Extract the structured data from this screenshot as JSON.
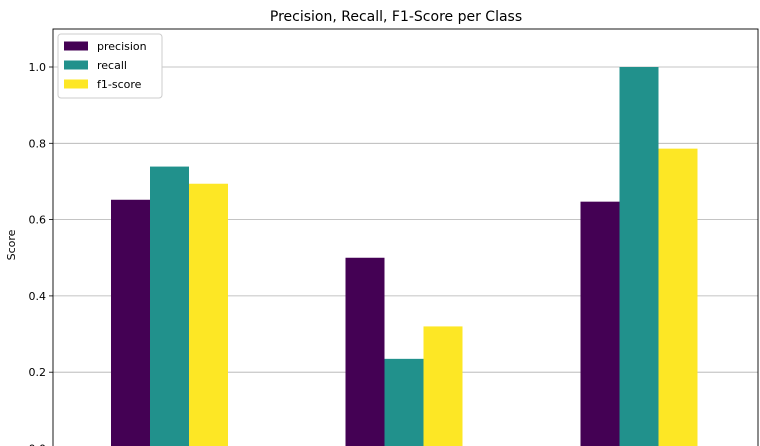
{
  "chart_data": {
    "type": "bar",
    "title": "Precision, Recall, F1-Score per Class",
    "xlabel": "",
    "ylabel": "Score",
    "categories": [
      "",
      "",
      ""
    ],
    "series": [
      {
        "name": "precision",
        "color": "#440154",
        "values": [
          0.652,
          0.5,
          0.647
        ]
      },
      {
        "name": "recall",
        "color": "#21918c",
        "values": [
          0.739,
          0.235,
          1.0
        ]
      },
      {
        "name": "f1-score",
        "color": "#fde725",
        "values": [
          0.694,
          0.32,
          0.786
        ]
      }
    ],
    "ylim": [
      0,
      1.1
    ],
    "yticks": [
      0.0,
      0.2,
      0.4,
      0.6,
      0.8,
      1.0
    ],
    "ytick_labels": [
      "0.0",
      "0.2",
      "0.4",
      "0.6",
      "0.8",
      "1.0"
    ],
    "grid": "y",
    "legend_position": "top-left"
  }
}
